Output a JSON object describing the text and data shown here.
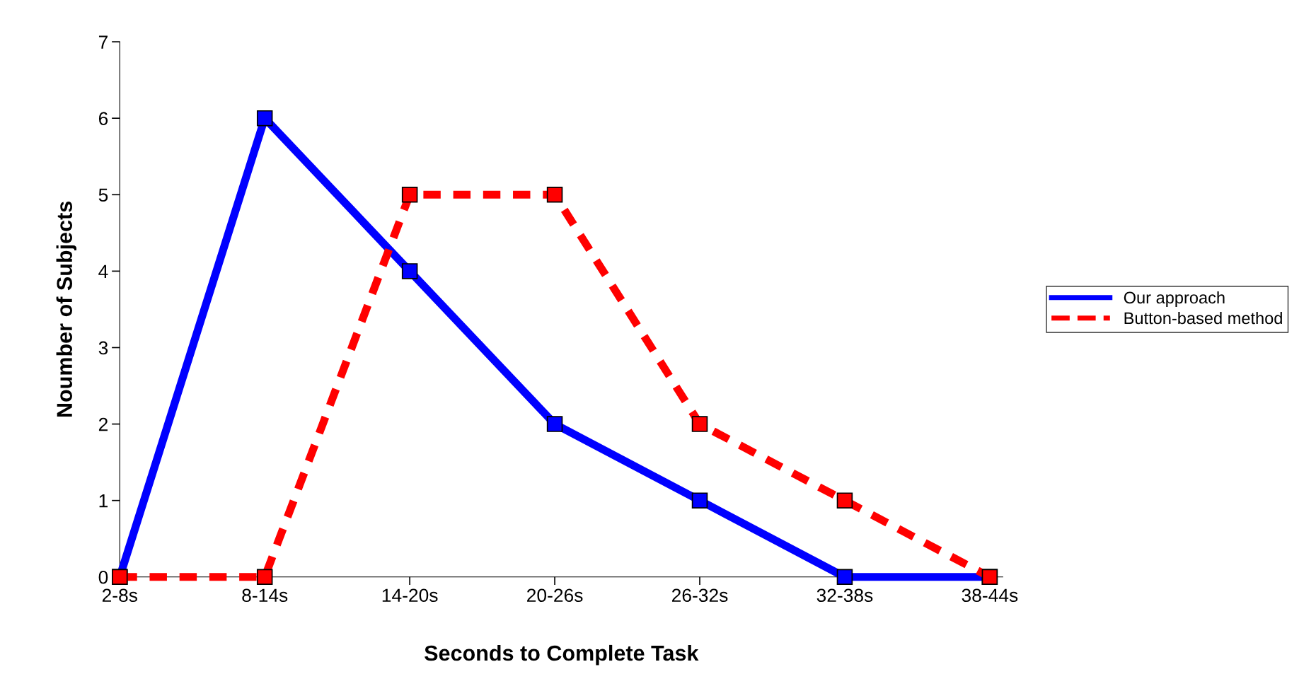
{
  "chart_data": {
    "type": "line",
    "xlabel": "Seconds to Complete Task",
    "ylabel": "Noumber of Subjects",
    "categories": [
      "2-8s",
      "8-14s",
      "14-20s",
      "20-26s",
      "26-32s",
      "32-38s",
      "38-44s"
    ],
    "series": [
      {
        "name": "Our approach",
        "color": "#0000ff",
        "values": [
          0,
          6,
          4,
          2,
          1,
          0,
          0
        ],
        "line_style": "solid"
      },
      {
        "name": "Button-based method",
        "color": "#ff0000",
        "values": [
          0,
          0,
          5,
          5,
          2,
          1,
          0
        ],
        "line_style": "dashed"
      }
    ],
    "ylim": [
      0,
      7
    ],
    "yticks": [
      0,
      1,
      2,
      3,
      4,
      5,
      6,
      7
    ],
    "grid": false,
    "legend": "right",
    "marker": "square"
  }
}
